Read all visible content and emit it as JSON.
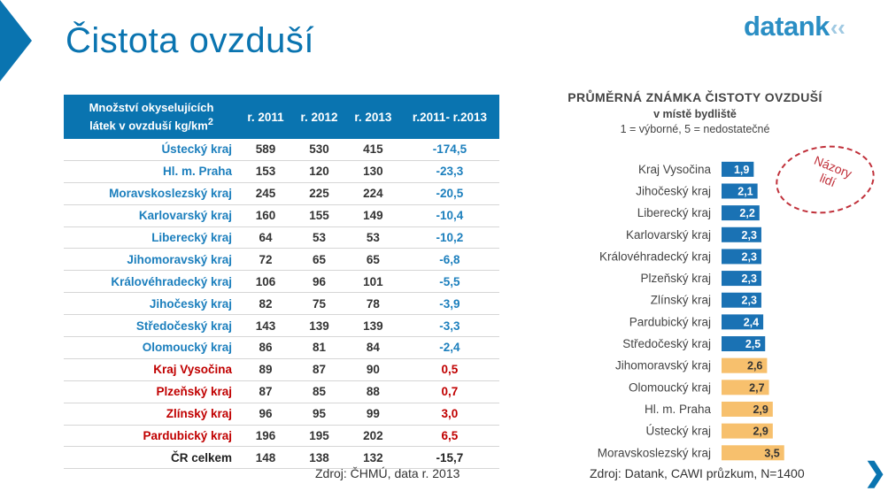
{
  "page": {
    "title": "Čistota ovzduší",
    "logo_text": "datank",
    "logo_mark": "‹‹",
    "next_icon": "chevron-right-icon",
    "next_glyph": "❯"
  },
  "table": {
    "header_region_line1": "Množství okyselujících",
    "header_region_line2": "látek v ovzduší kg/km",
    "header_region_sup": "2",
    "headers": [
      "r. 2011",
      "r. 2012",
      "r. 2013",
      "r.2011- r.2013"
    ],
    "rows": [
      {
        "region": "Ústecký kraj",
        "y2011": "589",
        "y2012": "530",
        "y2013": "415",
        "change": "-174,5",
        "color": "blue"
      },
      {
        "region": "Hl. m. Praha",
        "y2011": "153",
        "y2012": "120",
        "y2013": "130",
        "change": "-23,3",
        "color": "blue"
      },
      {
        "region": "Moravskoslezský kraj",
        "y2011": "245",
        "y2012": "225",
        "y2013": "224",
        "change": "-20,5",
        "color": "blue"
      },
      {
        "region": "Karlovarský kraj",
        "y2011": "160",
        "y2012": "155",
        "y2013": "149",
        "change": "-10,4",
        "color": "blue"
      },
      {
        "region": "Liberecký kraj",
        "y2011": "64",
        "y2012": "53",
        "y2013": "53",
        "change": "-10,2",
        "color": "blue"
      },
      {
        "region": "Jihomoravský kraj",
        "y2011": "72",
        "y2012": "65",
        "y2013": "65",
        "change": "-6,8",
        "color": "blue"
      },
      {
        "region": "Královéhradecký kraj",
        "y2011": "106",
        "y2012": "96",
        "y2013": "101",
        "change": "-5,5",
        "color": "blue"
      },
      {
        "region": "Jihočeský kraj",
        "y2011": "82",
        "y2012": "75",
        "y2013": "78",
        "change": "-3,9",
        "color": "blue"
      },
      {
        "region": "Středočeský kraj",
        "y2011": "143",
        "y2012": "139",
        "y2013": "139",
        "change": "-3,3",
        "color": "blue"
      },
      {
        "region": "Olomoucký kraj",
        "y2011": "86",
        "y2012": "81",
        "y2013": "84",
        "change": "-2,4",
        "color": "blue"
      },
      {
        "region": "Kraj Vysočina",
        "y2011": "89",
        "y2012": "87",
        "y2013": "90",
        "change": "0,5",
        "color": "red"
      },
      {
        "region": "Plzeňský kraj",
        "y2011": "87",
        "y2012": "85",
        "y2013": "88",
        "change": "0,7",
        "color": "red"
      },
      {
        "region": "Zlínský kraj",
        "y2011": "96",
        "y2012": "95",
        "y2013": "99",
        "change": "3,0",
        "color": "red"
      },
      {
        "region": "Pardubický kraj",
        "y2011": "196",
        "y2012": "195",
        "y2013": "202",
        "change": "6,5",
        "color": "red"
      },
      {
        "region": "ČR celkem",
        "y2011": "148",
        "y2012": "138",
        "y2013": "132",
        "change": "-15,7",
        "color": "dark"
      }
    ],
    "source": "Zdroj:  ČHMÚ,  data r. 2013"
  },
  "chart_data": {
    "type": "bar",
    "orientation": "horizontal",
    "title": "PRŮMĚRNÁ ZNÁMKA ČISTOTY OVZDUŠÍ",
    "subtitle": "v místě bydliště",
    "note": "1 = výborné, 5 = nedostatečné",
    "categories": [
      "Kraj Vysočina",
      "Jihočeský kraj",
      "Liberecký kraj",
      "Karlovarský kraj",
      "Královéhradecký kraj",
      "Plzeňský kraj",
      "Zlínský kraj",
      "Pardubický kraj",
      "Středočeský kraj",
      "Jihomoravský kraj",
      "Olomoucký kraj",
      "Hl. m. Praha",
      "Ústecký kraj",
      "Moravskoslezský kraj"
    ],
    "values": [
      1.9,
      2.1,
      2.2,
      2.3,
      2.3,
      2.3,
      2.3,
      2.4,
      2.5,
      2.6,
      2.7,
      2.9,
      2.9,
      3.5
    ],
    "value_labels": [
      "1,9",
      "2,1",
      "2,2",
      "2,3",
      "2,3",
      "2,3",
      "2,3",
      "2,4",
      "2,5",
      "2,6",
      "2,7",
      "2,9",
      "2,9",
      "3,5"
    ],
    "bar_groups": [
      "blue",
      "blue",
      "blue",
      "blue",
      "blue",
      "blue",
      "blue",
      "blue",
      "blue",
      "orange",
      "orange",
      "orange",
      "orange",
      "orange"
    ],
    "xlim": [
      0,
      5
    ],
    "grid": false,
    "legend": "none",
    "colors": {
      "blue": "#1a72b4",
      "orange": "#f7c06d"
    },
    "annotation_line1": "Názory",
    "annotation_line2": "lidí",
    "source": "Zdroj:  Datank, CAWI průzkum, N=1400"
  }
}
